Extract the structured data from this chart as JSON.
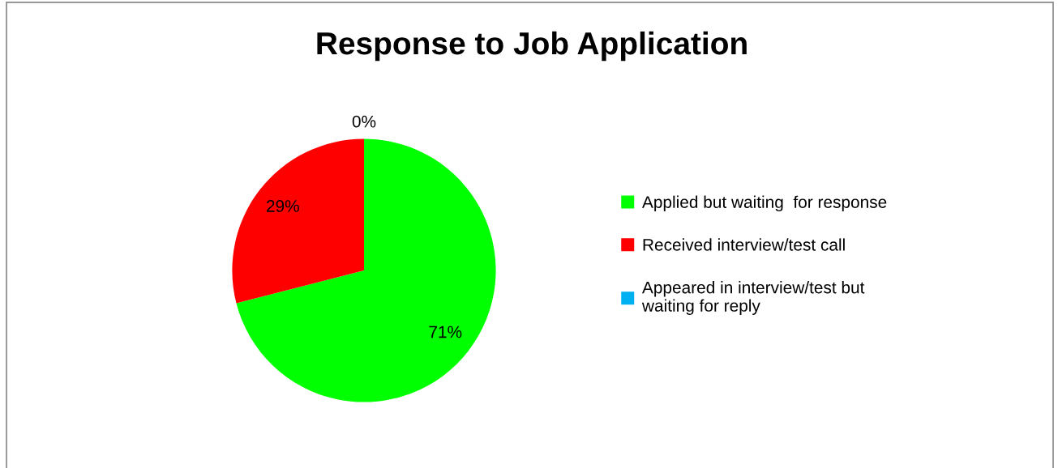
{
  "chart_data": {
    "type": "pie",
    "title": "Response to Job Application",
    "categories": [
      "Applied but waiting  for response",
      "Received interview/test call",
      "Appeared in interview/test but\nwaiting for reply"
    ],
    "values": [
      71,
      29,
      0
    ],
    "value_labels": [
      "71%",
      "29%",
      "0%"
    ],
    "colors": [
      "#00ff00",
      "#ff0000",
      "#00b0f0"
    ],
    "legend": "right"
  }
}
